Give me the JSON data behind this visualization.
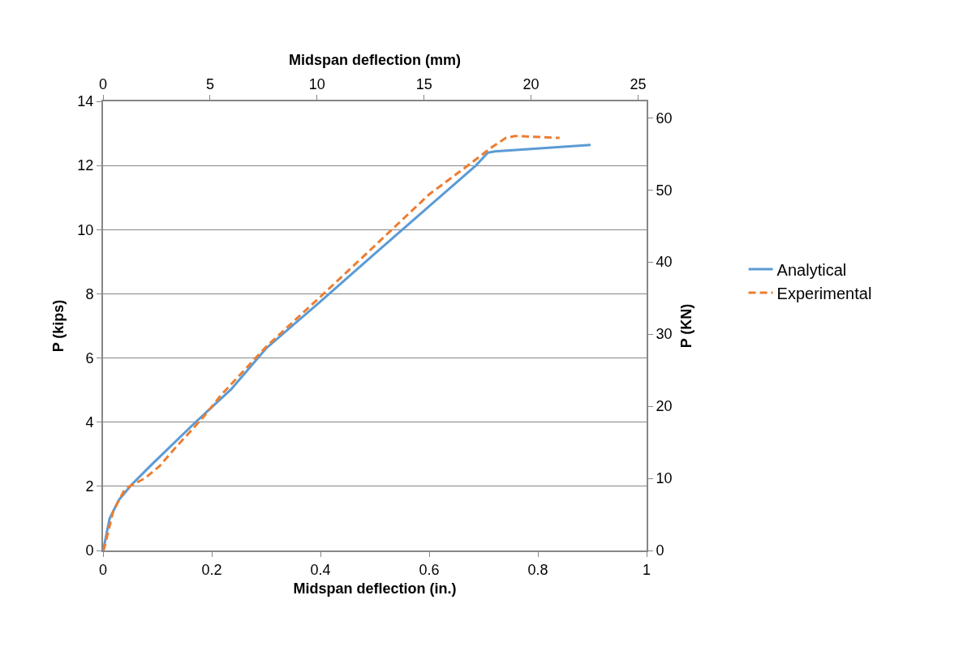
{
  "chart_data": {
    "type": "line",
    "xlabel": "Midspan deflection (in.)",
    "ylabel": "P (kips)",
    "x2label": "Midspan deflection (mm)",
    "y2label": "P (KN)",
    "xlim": [
      0,
      1
    ],
    "xticks": [
      0,
      0.2,
      0.4,
      0.6,
      0.8,
      1
    ],
    "ylim": [
      0,
      14
    ],
    "yticks": [
      0,
      2,
      4,
      6,
      8,
      10,
      12,
      14
    ],
    "x2lim": [
      0,
      25.4
    ],
    "x2ticks": [
      0,
      5,
      10,
      15,
      20,
      25
    ],
    "y2lim": [
      0,
      62.275
    ],
    "y2ticks": [
      0,
      10,
      20,
      30,
      40,
      50,
      60
    ],
    "grid": "y",
    "legend": "right",
    "series": [
      {
        "name": "Analytical",
        "color": "#5b9bd5",
        "line_style": "solid",
        "x": [
          0,
          0.002,
          0.012,
          0.029,
          0.052,
          0.089,
          0.169,
          0.236,
          0.3,
          0.4,
          0.5,
          0.6,
          0.686,
          0.708,
          0.721,
          0.897
        ],
        "values": [
          0,
          0.14,
          0.99,
          1.57,
          2.04,
          2.67,
          3.98,
          5.03,
          6.3,
          7.76,
          9.25,
          10.73,
          12.0,
          12.4,
          12.44,
          12.64
        ]
      },
      {
        "name": "Experimental",
        "color": "#ed7d31",
        "line_style": "dashed",
        "x": [
          0,
          0.002,
          0.019,
          0.039,
          0.049,
          0.077,
          0.104,
          0.134,
          0.164,
          0.186,
          0.218,
          0.3,
          0.4,
          0.5,
          0.6,
          0.676,
          0.716,
          0.741,
          0.758,
          0.84
        ],
        "values": [
          0,
          0.06,
          1.24,
          1.87,
          2.0,
          2.25,
          2.63,
          3.22,
          3.77,
          4.19,
          4.86,
          6.35,
          7.91,
          9.5,
          11.1,
          12.06,
          12.58,
          12.86,
          12.92,
          12.86
        ]
      }
    ]
  }
}
